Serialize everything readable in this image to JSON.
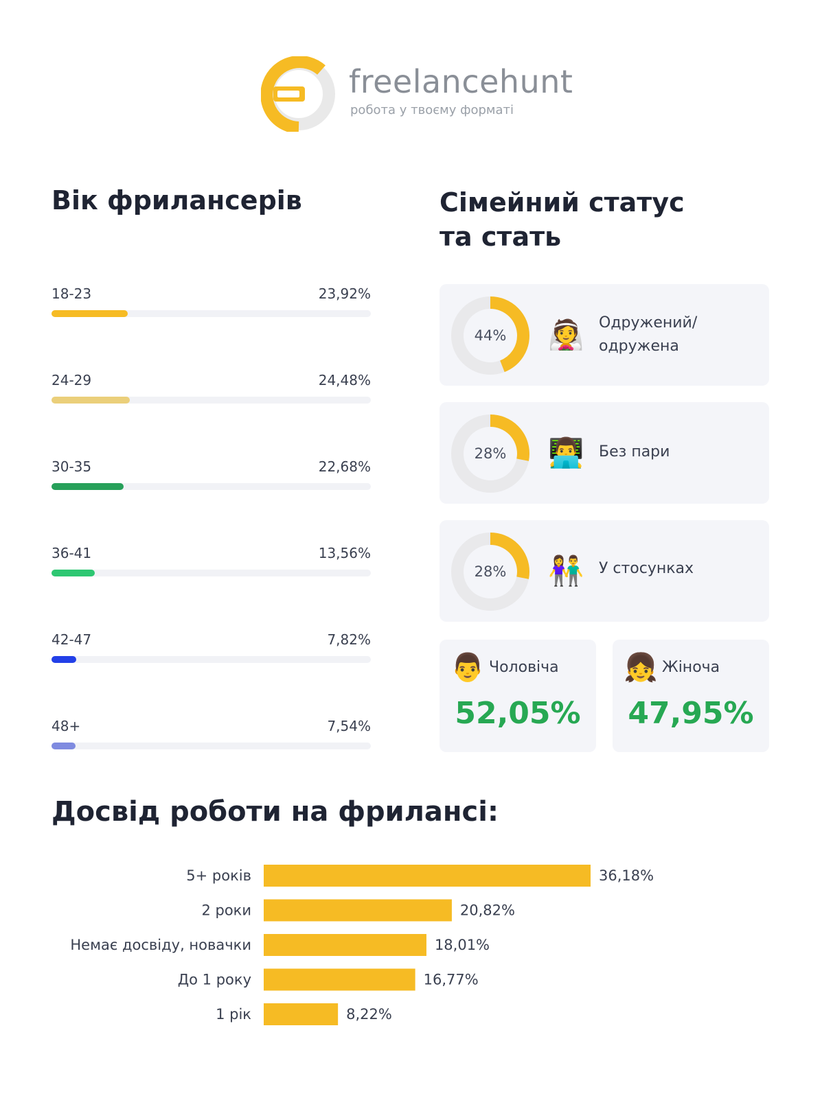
{
  "logo": {
    "brand": "freelancehunt",
    "tagline": "робота у твоєму форматі",
    "colors": {
      "accent": "#F6BB24",
      "gray": "#E9E9E9"
    }
  },
  "age_section": {
    "title": "Вік фрилансерів"
  },
  "family_section": {
    "title_line1": "Сімейний статус",
    "title_line2": "та стать",
    "cards": [
      {
        "percent_label": "44%",
        "percent": 44,
        "emoji": "👰",
        "icon": "bride-icon",
        "line1": "Одружений/",
        "line2": "одружена"
      },
      {
        "percent_label": "28%",
        "percent": 28,
        "emoji": "👨‍💻",
        "icon": "technologist-icon",
        "line1": "Без пари",
        "line2": ""
      },
      {
        "percent_label": "28%",
        "percent": 28,
        "emoji": "👫",
        "icon": "couple-icon",
        "line1": "У стосунках",
        "line2": ""
      }
    ],
    "gender": [
      {
        "emoji": "👨",
        "icon": "man-icon",
        "label": "Чоловіча",
        "value": "52,05%"
      },
      {
        "emoji": "👧",
        "icon": "girl-icon",
        "label": "Жіноча",
        "value": "47,95%"
      }
    ]
  },
  "experience_section": {
    "title": "Досвід роботи на фрилансі:"
  },
  "chart_data": [
    {
      "type": "bar",
      "orientation": "horizontal",
      "categories": [
        "18-23",
        "24-29",
        "30-35",
        "36-41",
        "42-47",
        "48+"
      ],
      "values": [
        23.92,
        24.48,
        22.68,
        13.56,
        7.82,
        7.54
      ],
      "value_labels": [
        "23,92%",
        "24,48%",
        "22,68%",
        "13,56%",
        "7,82%",
        "7,54%"
      ],
      "colors": [
        "#F6BB24",
        "#EBCF7A",
        "#27A05A",
        "#2EC772",
        "#2340E8",
        "#7F8BE0"
      ],
      "xlim": [
        0,
        100
      ]
    },
    {
      "type": "bar",
      "orientation": "horizontal",
      "categories": [
        "5+ років",
        "2 роки",
        "Немає досвіду, новачки",
        "До 1 року",
        "1 рік"
      ],
      "values": [
        36.18,
        20.82,
        18.01,
        16.77,
        8.22
      ],
      "value_labels": [
        "36,18%",
        "20,82%",
        "18,01%",
        "16,77%",
        "8,22%"
      ],
      "color": "#F6BB24"
    }
  ]
}
